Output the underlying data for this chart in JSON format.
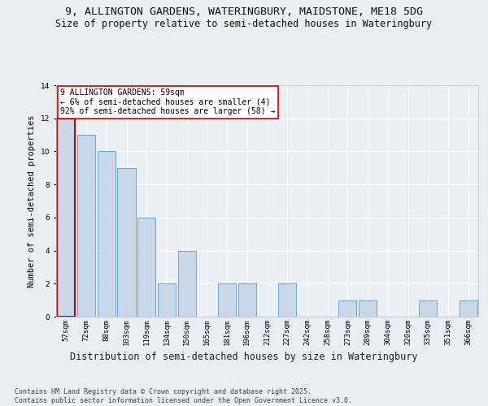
{
  "title1": "9, ALLINGTON GARDENS, WATERINGBURY, MAIDSTONE, ME18 5DG",
  "title2": "Size of property relative to semi-detached houses in Wateringbury",
  "xlabel": "Distribution of semi-detached houses by size in Wateringbury",
  "ylabel": "Number of semi-detached properties",
  "categories": [
    "57sqm",
    "72sqm",
    "88sqm",
    "103sqm",
    "119sqm",
    "134sqm",
    "150sqm",
    "165sqm",
    "181sqm",
    "196sqm",
    "212sqm",
    "227sqm",
    "242sqm",
    "258sqm",
    "273sqm",
    "289sqm",
    "304sqm",
    "320sqm",
    "335sqm",
    "351sqm",
    "366sqm"
  ],
  "values": [
    12,
    11,
    10,
    9,
    6,
    2,
    4,
    0,
    2,
    2,
    0,
    2,
    0,
    0,
    1,
    1,
    0,
    0,
    1,
    0,
    1
  ],
  "bar_color": "#c8d8e8",
  "bar_edge_color": "#5b9bd5",
  "highlight_index": 0,
  "highlight_edge_color": "#cc0000",
  "annotation_text": "9 ALLINGTON GARDENS: 59sqm\n← 6% of semi-detached houses are smaller (4)\n92% of semi-detached houses are larger (58) →",
  "annotation_box_color": "#ffffff",
  "annotation_box_edge": "#cc0000",
  "ylim": [
    0,
    14
  ],
  "yticks": [
    0,
    2,
    4,
    6,
    8,
    10,
    12,
    14
  ],
  "bg_color": "#e8eef4",
  "plot_bg_color": "#eaf0f6",
  "grid_color": "#ffffff",
  "footer": "Contains HM Land Registry data © Crown copyright and database right 2025.\nContains public sector information licensed under the Open Government Licence v3.0.",
  "title1_fontsize": 9.5,
  "title2_fontsize": 8.5,
  "xlabel_fontsize": 8.5,
  "ylabel_fontsize": 7.5,
  "tick_fontsize": 6.5,
  "footer_fontsize": 6.0,
  "annotation_fontsize": 7.0
}
